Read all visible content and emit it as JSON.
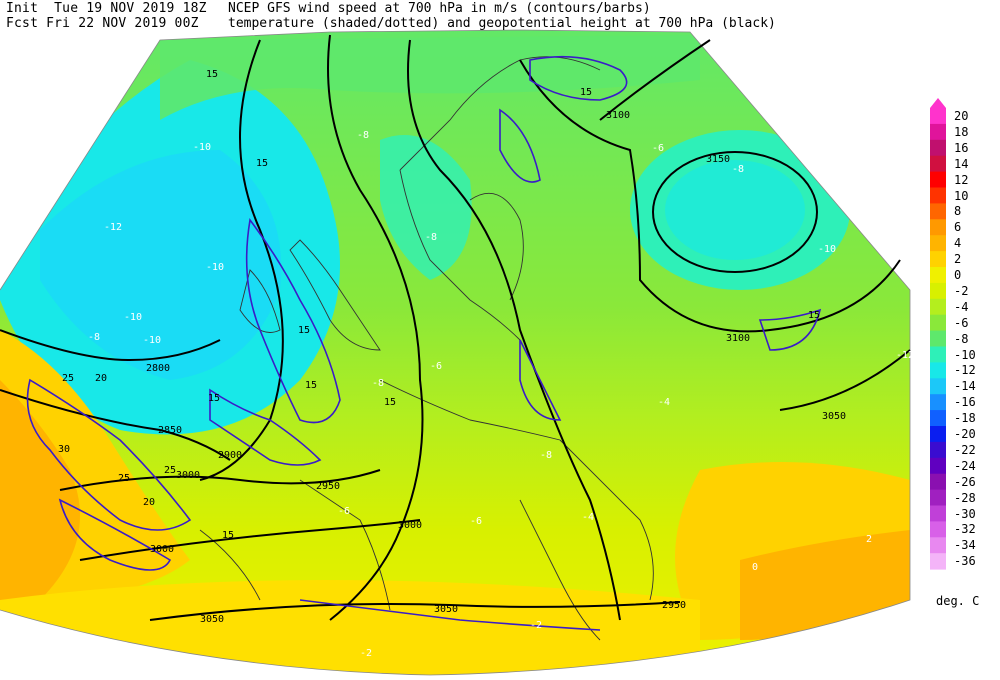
{
  "header": {
    "init": "Init  Tue 19 NOV 2019 18Z",
    "fcst": "Fcst Fri 22 NOV 2019 00Z",
    "title": "NCEP GFS wind speed at 700 hPa in m/s (contours/barbs)",
    "subtitle": "temperature (shaded/dotted) and geopotential height at 700 hPa (black)"
  },
  "colorbar": {
    "unit": "deg. C",
    "levels": [
      "20",
      "18",
      "16",
      "14",
      "12",
      "10",
      "8",
      "6",
      "4",
      "2",
      "0",
      "-2",
      "-4",
      "-6",
      "-8",
      "-10",
      "-12",
      "-14",
      "-16",
      "-18",
      "-20",
      "-22",
      "-24",
      "-26",
      "-28",
      "-30",
      "-32",
      "-34",
      "-36"
    ],
    "colors": [
      "#ff33cc",
      "#e0149b",
      "#c0106e",
      "#d01040",
      "#ff0000",
      "#ff3300",
      "#ff6600",
      "#ff9900",
      "#ffb400",
      "#ffd200",
      "#f0f000",
      "#d8f000",
      "#b4ee1e",
      "#8ae83a",
      "#5ee86c",
      "#2ef0b8",
      "#18e8e8",
      "#1cc8f8",
      "#1890ff",
      "#1060ff",
      "#0a1ef0",
      "#3a0cd0",
      "#6000c0",
      "#8a10b0",
      "#a020c0",
      "#c040d8",
      "#d860e8",
      "#e888f0",
      "#f4b4f8"
    ]
  },
  "height_labels": [
    "3100",
    "3150",
    "3100",
    "3050",
    "3000",
    "2950",
    "2900",
    "2850",
    "2800",
    "3000",
    "3050",
    "3050",
    "2950",
    "3000"
  ],
  "wind_labels": [
    "15",
    "15",
    "15",
    "15",
    "15",
    "15",
    "15",
    "15",
    "15",
    "25",
    "20",
    "25",
    "20",
    "25",
    "30"
  ],
  "temp_labels": [
    "-12",
    "-10",
    "-10",
    "-10",
    "-8",
    "-8",
    "-8",
    "-10",
    "-6",
    "-6",
    "-8",
    "-8",
    "-6",
    "-4",
    "-4",
    "-2",
    "-2",
    "0",
    "2",
    "-6",
    "-8",
    "-10",
    "-12"
  ]
}
